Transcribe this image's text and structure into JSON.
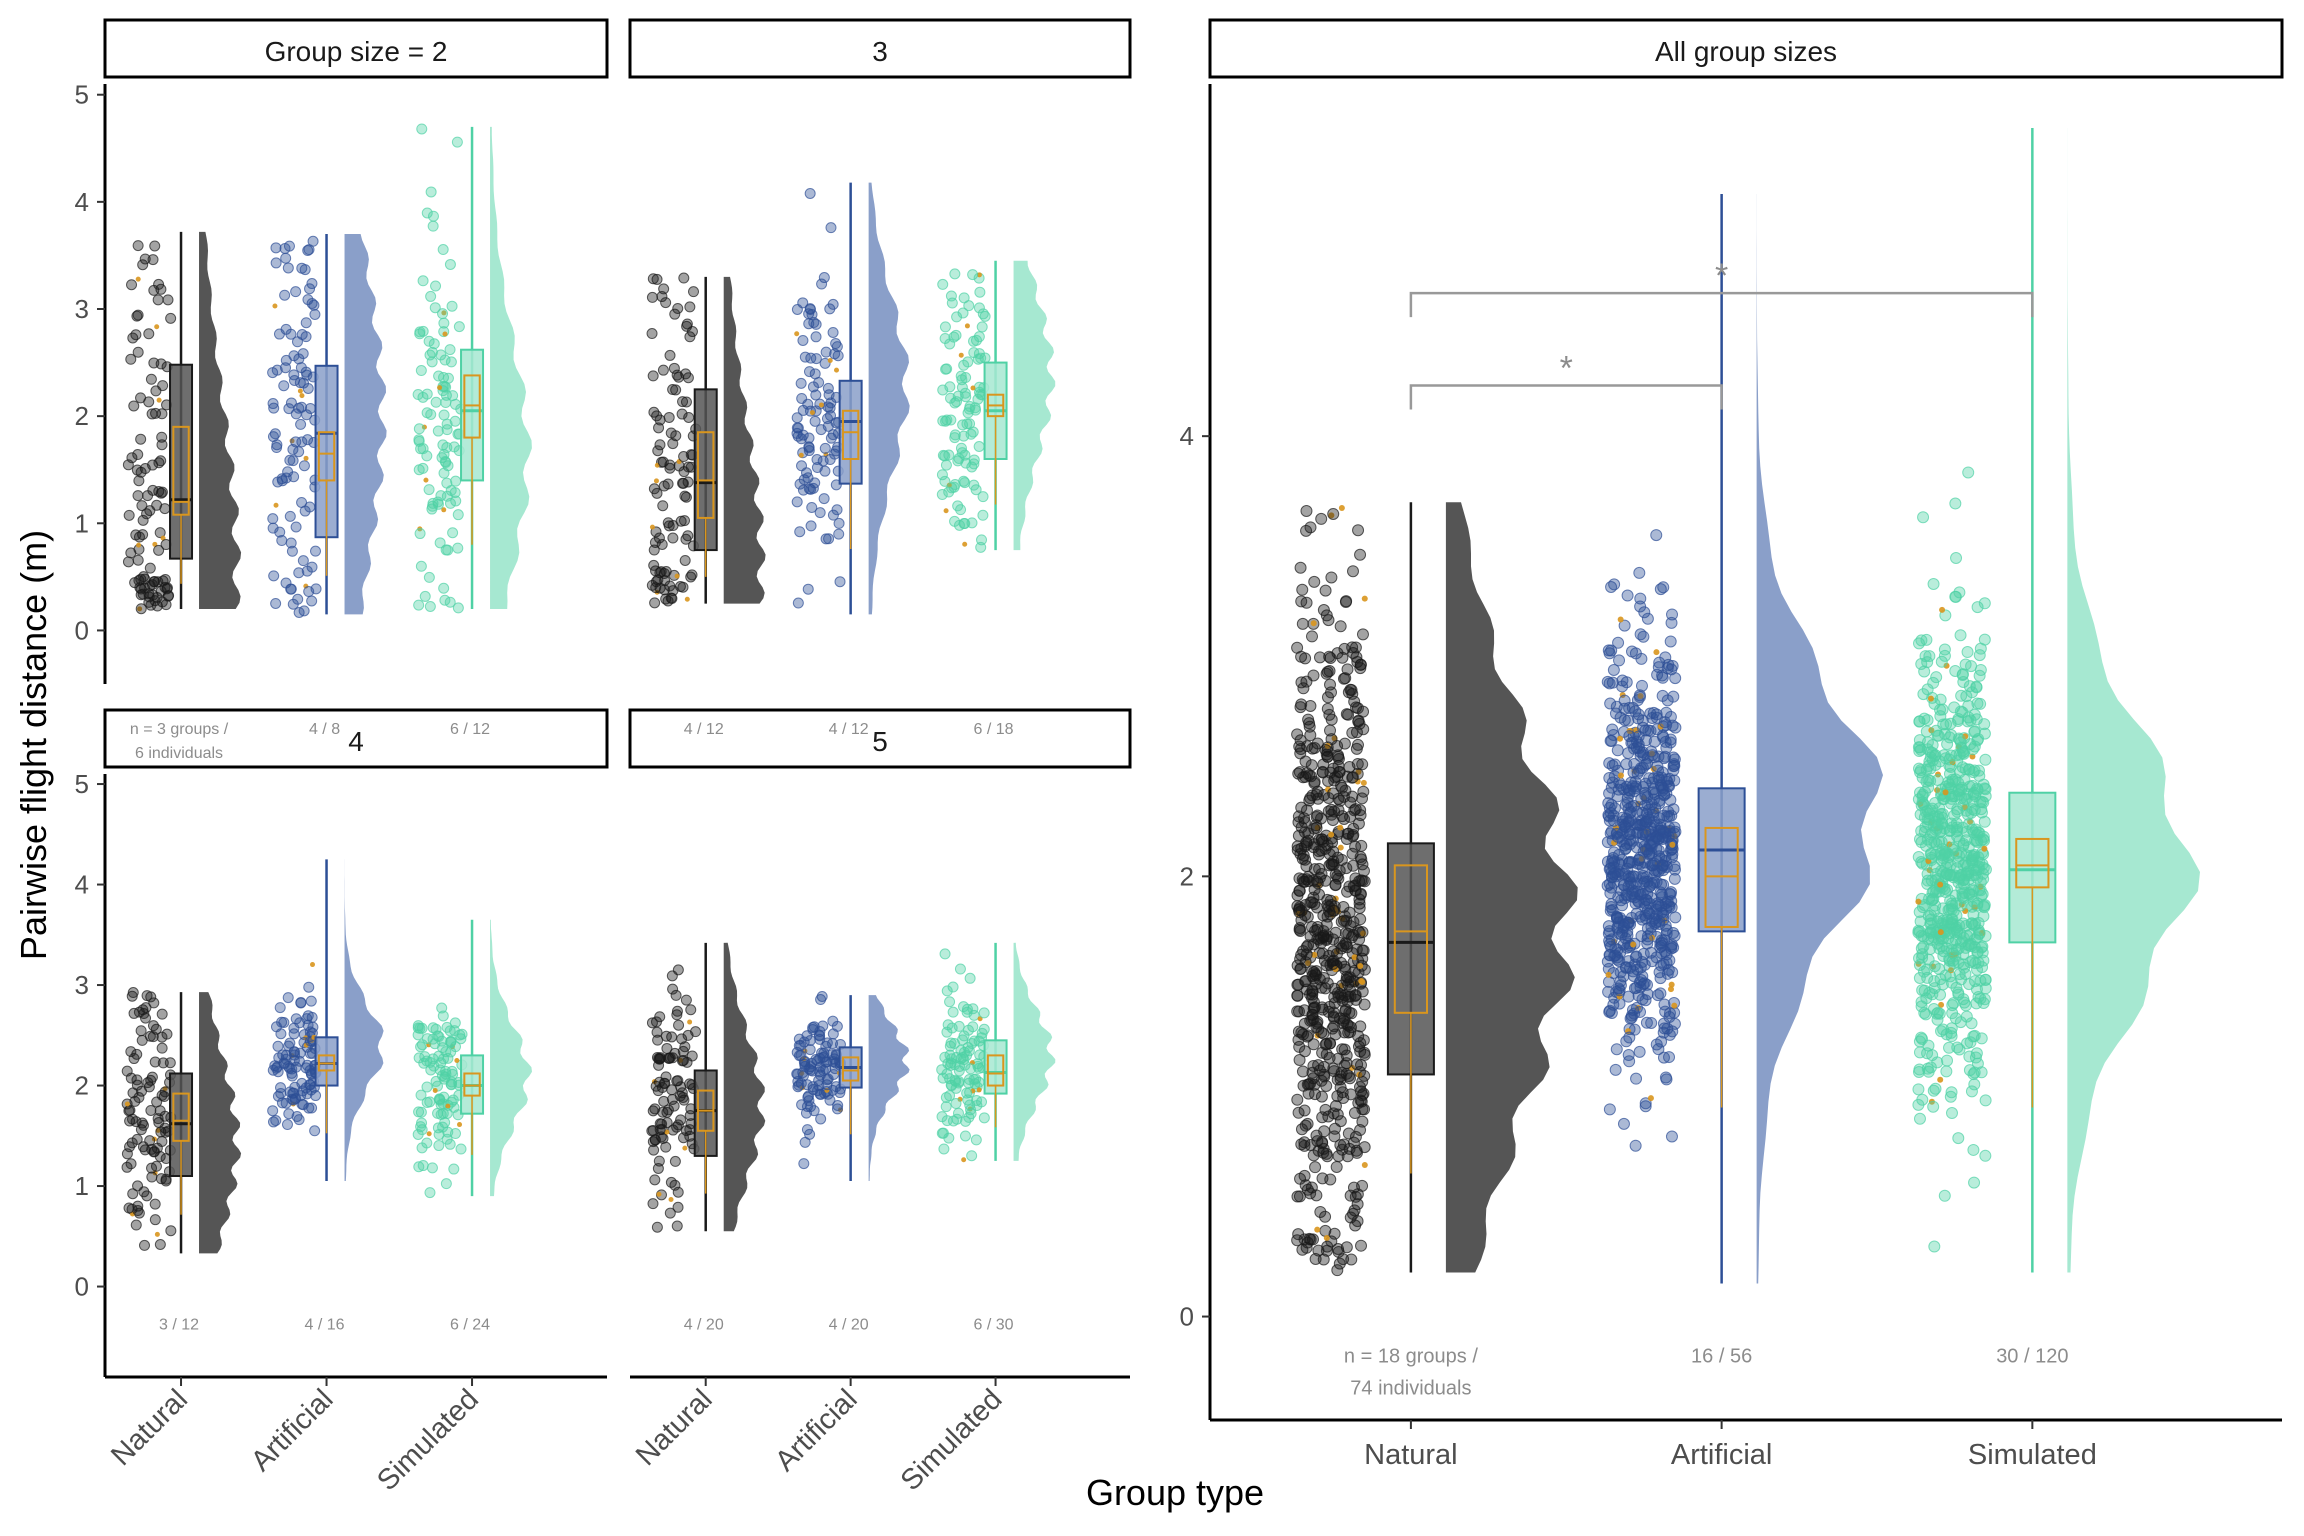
{
  "colors": {
    "Natural": "#1a1a1a",
    "Artificial": "#2d4f96",
    "Simulated": "#4fd1a5",
    "Natural_fill": "#555555",
    "Artificial_fill": "#8a9fc9",
    "Simulated_fill": "#a6e8d1",
    "mean_overlay": "#d9961e",
    "significance": "#999999"
  },
  "axes": {
    "ylabel": "Pairwise flight distance (m)",
    "xlabel": "Group type"
  },
  "chart_data": [
    {
      "type": "raincloud",
      "panel": "size2",
      "title": "Group size =  2",
      "ylim": [
        -0.5,
        5.1
      ],
      "yticks": [
        "0",
        "1",
        "2",
        "3",
        "4",
        "5"
      ],
      "categories": [
        "Natural",
        "Artificial",
        "Simulated"
      ],
      "n_labels": [
        [
          "n = 3 groups /",
          "6 individuals"
        ],
        [
          "4 / 8"
        ],
        [
          "6 / 12"
        ]
      ],
      "series": [
        {
          "name": "Natural",
          "min": 0.2,
          "q1": 0.67,
          "median": 1.22,
          "q3": 2.48,
          "max": 3.72,
          "mean_box": [
            1.08,
            1.9
          ],
          "mean_median": 1.2,
          "density_peak": 0.55
        },
        {
          "name": "Artificial",
          "min": 0.15,
          "q1": 0.87,
          "median": 1.84,
          "q3": 2.47,
          "max": 3.7,
          "mean_box": [
            1.4,
            1.85
          ],
          "mean_median": 1.65,
          "density_peak": 2.0
        },
        {
          "name": "Simulated",
          "min": 0.2,
          "q1": 1.4,
          "median": 2.05,
          "q3": 2.62,
          "max": 4.7,
          "mean_box": [
            1.8,
            2.38
          ],
          "mean_median": 2.1,
          "density_peak": 1.6
        }
      ]
    },
    {
      "type": "raincloud",
      "panel": "size3",
      "title": "3",
      "ylim": [
        -0.5,
        5.1
      ],
      "categories": [
        "Natural",
        "Artificial",
        "Simulated"
      ],
      "n_labels": [
        [
          "4 / 12"
        ],
        [
          "4 / 12"
        ],
        [
          "6 / 18"
        ]
      ],
      "series": [
        {
          "name": "Natural",
          "min": 0.25,
          "q1": 0.75,
          "median": 1.38,
          "q3": 2.25,
          "max": 3.3,
          "mean_box": [
            1.05,
            1.85
          ],
          "mean_median": 1.4,
          "density_peak": 0.6
        },
        {
          "name": "Artificial",
          "min": 0.15,
          "q1": 1.37,
          "median": 1.95,
          "q3": 2.33,
          "max": 4.18,
          "mean_box": [
            1.6,
            2.05
          ],
          "mean_median": 1.85,
          "density_peak": 2.3
        },
        {
          "name": "Simulated",
          "min": 0.75,
          "q1": 1.6,
          "median": 2.05,
          "q3": 2.5,
          "max": 3.45,
          "mean_box": [
            2.0,
            2.2
          ],
          "mean_median": 2.1,
          "density_peak": 2.4
        }
      ]
    },
    {
      "type": "raincloud",
      "panel": "size4",
      "title": "4",
      "ylim": [
        -0.9,
        5.1
      ],
      "yticks": [
        "0",
        "1",
        "2",
        "3",
        "4",
        "5"
      ],
      "categories": [
        "Natural",
        "Artificial",
        "Simulated"
      ],
      "n_labels": [
        [
          "3 / 12"
        ],
        [
          "4 / 16"
        ],
        [
          "6 / 24"
        ]
      ],
      "series": [
        {
          "name": "Natural",
          "min": 0.33,
          "q1": 1.1,
          "median": 1.62,
          "q3": 2.12,
          "max": 2.93,
          "mean_box": [
            1.45,
            1.92
          ],
          "mean_median": 1.65,
          "density_peak": 1.4
        },
        {
          "name": "Artificial",
          "min": 1.05,
          "q1": 2.0,
          "median": 2.22,
          "q3": 2.48,
          "max": 4.25,
          "mean_box": [
            2.15,
            2.3
          ],
          "mean_median": 2.22,
          "density_peak": 2.4
        },
        {
          "name": "Simulated",
          "min": 0.9,
          "q1": 1.72,
          "median": 2.0,
          "q3": 2.3,
          "max": 3.65,
          "mean_box": [
            1.9,
            2.12
          ],
          "mean_median": 2.0,
          "density_peak": 2.1
        }
      ]
    },
    {
      "type": "raincloud",
      "panel": "size5",
      "title": "5",
      "ylim": [
        -0.9,
        5.1
      ],
      "categories": [
        "Natural",
        "Artificial",
        "Simulated"
      ],
      "n_labels": [
        [
          "4 / 20"
        ],
        [
          "4 / 20"
        ],
        [
          "6 / 30"
        ]
      ],
      "series": [
        {
          "name": "Natural",
          "min": 0.55,
          "q1": 1.3,
          "median": 1.75,
          "q3": 2.15,
          "max": 3.42,
          "mean_box": [
            1.55,
            1.95
          ],
          "mean_median": 1.75,
          "density_peak": 1.8
        },
        {
          "name": "Artificial",
          "min": 1.05,
          "q1": 1.98,
          "median": 2.18,
          "q3": 2.38,
          "max": 2.9,
          "mean_box": [
            2.05,
            2.28
          ],
          "mean_median": 2.15,
          "density_peak": 2.25
        },
        {
          "name": "Simulated",
          "min": 1.25,
          "q1": 1.92,
          "median": 2.13,
          "q3": 2.45,
          "max": 3.42,
          "mean_box": [
            2.0,
            2.3
          ],
          "mean_median": 2.12,
          "density_peak": 2.3
        }
      ]
    },
    {
      "type": "raincloud",
      "panel": "all",
      "title": "All group sizes",
      "ylim": [
        -0.47,
        5.6
      ],
      "yticks": [
        "0",
        "2",
        "4"
      ],
      "categories": [
        "Natural",
        "Artificial",
        "Simulated"
      ],
      "n_labels": [
        [
          "n = 18 groups /",
          "74 individuals"
        ],
        [
          "16 / 56"
        ],
        [
          "30 / 120"
        ]
      ],
      "significance": [
        {
          "from": "Natural",
          "to": "Artificial",
          "label": "*"
        },
        {
          "from": "Natural",
          "to": "Simulated",
          "label": "*"
        }
      ],
      "series": [
        {
          "name": "Natural",
          "min": 0.2,
          "q1": 1.1,
          "median": 1.7,
          "q3": 2.15,
          "max": 3.7,
          "mean_box": [
            1.38,
            2.05
          ],
          "mean_median": 1.75,
          "density_peak": 1.8
        },
        {
          "name": "Artificial",
          "min": 0.15,
          "q1": 1.75,
          "median": 2.12,
          "q3": 2.4,
          "max": 5.1,
          "mean_box": [
            1.77,
            2.22
          ],
          "mean_median": 2.0,
          "density_peak": 2.3
        },
        {
          "name": "Simulated",
          "min": 0.2,
          "q1": 1.7,
          "median": 2.03,
          "q3": 2.38,
          "max": 5.4,
          "mean_box": [
            1.95,
            2.17
          ],
          "mean_median": 2.05,
          "density_peak": 2.05
        }
      ]
    }
  ]
}
